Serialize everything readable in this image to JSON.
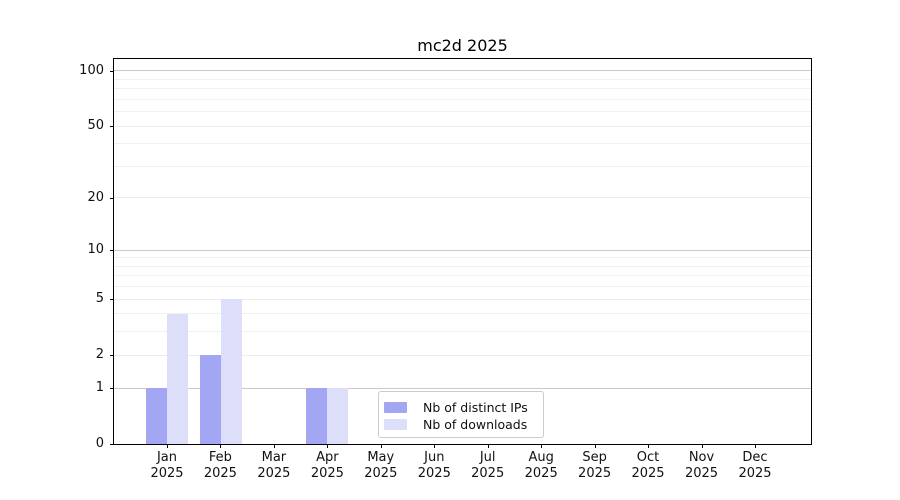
{
  "chart_data": {
    "type": "bar",
    "title": "mc2d 2025",
    "categories": [
      "Jan",
      "Feb",
      "Mar",
      "Apr",
      "May",
      "Jun",
      "Jul",
      "Aug",
      "Sep",
      "Oct",
      "Nov",
      "Dec"
    ],
    "x_sublabel": "2025",
    "series": [
      {
        "name": "Nb of distinct IPs",
        "color": "#a3a6f3",
        "values": [
          1,
          2,
          0,
          1,
          0,
          0,
          0,
          0,
          0,
          0,
          0,
          0
        ]
      },
      {
        "name": "Nb of downloads",
        "color": "#dcdefa",
        "values": [
          4,
          5,
          0,
          1,
          0,
          0,
          0,
          0,
          0,
          0,
          0,
          0
        ]
      }
    ],
    "xlabel": "",
    "ylabel": "",
    "y_scale": "log10(1+y)",
    "y_ticks": [
      0,
      1,
      2,
      5,
      10,
      20,
      50,
      100
    ],
    "y_minor_ticks": [
      3,
      4,
      6,
      7,
      8,
      9,
      30,
      40,
      60,
      70,
      80,
      90
    ],
    "y_emphasized_ticks": [
      1,
      10,
      100
    ],
    "ylim": [
      0,
      116
    ],
    "grid": true,
    "legend": {
      "position": "lower center",
      "entries": [
        "Nb of distinct IPs",
        "Nb of downloads"
      ]
    },
    "colors": {
      "background": "#ffffff",
      "axis": "#000000",
      "grid_major": "#c9c9c9",
      "grid_minor": "#f0f0f0",
      "tick_text": "#111111"
    }
  }
}
